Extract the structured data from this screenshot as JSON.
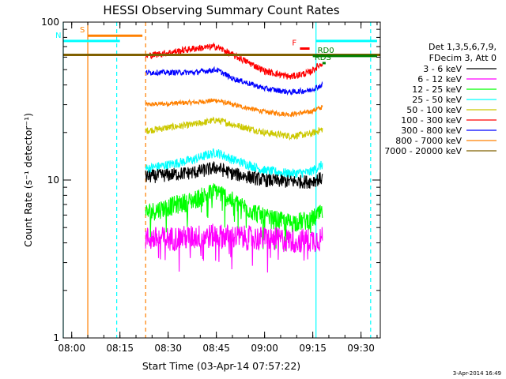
{
  "chart_data": {
    "type": "line",
    "title": "HESSI Observing Summary Count Rates",
    "xlabel": "Start Time (03-Apr-14 07:57:22)",
    "ylabel": "Count Rate (s⁻¹ detector⁻¹)",
    "y_scale": "log",
    "xlim": [
      "07:57:22",
      "09:36:00"
    ],
    "ylim": [
      1,
      100
    ],
    "x_ticks": [
      "08:00",
      "08:15",
      "08:30",
      "08:45",
      "09:00",
      "09:15",
      "09:30"
    ],
    "y_ticks": [
      "1",
      "10",
      "100"
    ],
    "legend": {
      "placement": "right",
      "header_lines": [
        "Det 1,3,5,6,7,9,",
        "FDecim 3, Att 0"
      ]
    },
    "series": [
      {
        "name": "3 - 6 keV",
        "color": "#000000",
        "x": [
          "08:23",
          "08:30",
          "08:38",
          "08:45",
          "08:50",
          "09:00",
          "09:08",
          "09:14",
          "09:18"
        ],
        "y": [
          10.5,
          10.8,
          11.2,
          12.0,
          11.0,
          10.0,
          9.8,
          9.8,
          10.3
        ]
      },
      {
        "name": "6 - 12 keV",
        "color": "#ff00ff",
        "x": [
          "08:23",
          "08:30",
          "08:38",
          "08:45",
          "08:50",
          "09:00",
          "09:08",
          "09:14",
          "09:18"
        ],
        "y": [
          4.3,
          4.3,
          4.4,
          4.5,
          4.4,
          4.3,
          4.2,
          4.2,
          4.3
        ]
      },
      {
        "name": "12 - 25 keV",
        "color": "#00ff00",
        "x": [
          "08:23",
          "08:30",
          "08:38",
          "08:45",
          "08:50",
          "09:00",
          "09:08",
          "09:14",
          "09:18"
        ],
        "y": [
          6.2,
          6.8,
          7.5,
          8.6,
          7.4,
          5.8,
          5.4,
          5.6,
          6.2
        ]
      },
      {
        "name": "25 - 50 keV",
        "color": "#00ffff",
        "x": [
          "08:23",
          "08:30",
          "08:38",
          "08:45",
          "08:50",
          "09:00",
          "09:08",
          "09:14",
          "09:18"
        ],
        "y": [
          11.8,
          12.5,
          13.5,
          15.0,
          13.5,
          11.5,
          11.0,
          11.2,
          12.5
        ]
      },
      {
        "name": "50 - 100 keV",
        "color": "#ccc800",
        "x": [
          "08:23",
          "08:30",
          "08:38",
          "08:45",
          "08:50",
          "09:00",
          "09:08",
          "09:14",
          "09:18"
        ],
        "y": [
          20.5,
          21.5,
          22.5,
          24.0,
          22.5,
          20.0,
          19.0,
          19.5,
          21.0
        ]
      },
      {
        "name": "100 - 300 keV",
        "color": "#ff0000",
        "x": [
          "08:23",
          "08:30",
          "08:38",
          "08:45",
          "08:50",
          "09:00",
          "09:08",
          "09:14",
          "09:18"
        ],
        "y": [
          61,
          64,
          68,
          70,
          62,
          49,
          45,
          48,
          55
        ]
      },
      {
        "name": "300 - 800 keV",
        "color": "#0000ff",
        "x": [
          "08:23",
          "08:30",
          "08:38",
          "08:45",
          "08:50",
          "09:00",
          "09:08",
          "09:14",
          "09:18"
        ],
        "y": [
          48,
          48,
          48,
          50,
          44,
          38,
          36,
          37,
          40
        ]
      },
      {
        "name": "800 - 7000 keV",
        "color": "#ff8000",
        "x": [
          "08:23",
          "08:30",
          "08:38",
          "08:45",
          "08:50",
          "09:00",
          "09:08",
          "09:14",
          "09:18"
        ],
        "y": [
          30,
          30.5,
          31,
          32,
          30,
          27,
          26,
          27,
          29
        ]
      },
      {
        "name": "7000 - 20000 keV",
        "color": "#806000",
        "x": [
          "08:23",
          "08:30",
          "08:38",
          "08:45",
          "08:50",
          "09:00",
          "09:08",
          "09:14",
          "09:18"
        ],
        "y": [
          62,
          62,
          62,
          62,
          62,
          62,
          62,
          62,
          62
        ]
      }
    ],
    "flags": [
      {
        "label": "S",
        "color": "#ff8000",
        "start": "08:05",
        "end": "08:22",
        "y": 82
      },
      {
        "label": "N",
        "color": "#00ffff",
        "start": "07:57:22",
        "end": "08:15",
        "y": 76
      },
      {
        "label": "F",
        "color": "#ff0000",
        "start": "09:11",
        "end": "09:14",
        "y": 68
      },
      {
        "label": "RD0",
        "color": "#008000",
        "start": "09:15",
        "end": "09:35",
        "y": 61
      },
      {
        "label": "RDS",
        "color": "#008000",
        "start": "09:18",
        "end": "09:19",
        "y": 55
      }
    ],
    "night_segments": [
      {
        "color": "#00ffff",
        "start": "09:16",
        "end": "09:35",
        "y": 76
      }
    ],
    "reference_line": {
      "color": "#008000",
      "y": 62
    },
    "vertical_markers": [
      {
        "time": "07:57:22",
        "color": "#00ffff",
        "style": "solid"
      },
      {
        "time": "08:05",
        "color": "#ff8000",
        "style": "solid"
      },
      {
        "time": "08:14",
        "color": "#00ffff",
        "style": "dashed"
      },
      {
        "time": "08:23",
        "color": "#ff8000",
        "style": "dashed"
      },
      {
        "time": "09:16",
        "color": "#00ffff",
        "style": "solid"
      },
      {
        "time": "09:33",
        "color": "#00ffff",
        "style": "dashed"
      }
    ],
    "data_window": [
      "08:23",
      "09:18"
    ],
    "timestamp": "3-Apr-2014 16:49"
  }
}
